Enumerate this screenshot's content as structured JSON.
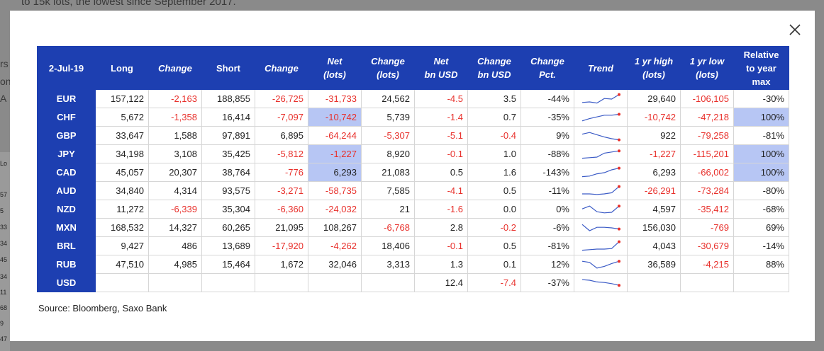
{
  "background": {
    "top_text": "to 15k lots, the lowest since September 2017.",
    "left_fragments": [
      "rs",
      "on",
      "A"
    ],
    "side_numbers": [
      "Lo",
      "57",
      "5",
      "33",
      "34",
      "45",
      "34",
      "11",
      "68",
      "9",
      "47"
    ]
  },
  "colors": {
    "header": "#1d3fb1",
    "negative": "#e8302b",
    "highlight": "#b7c6f4",
    "trend_line": "#3b5bc6",
    "trend_dot": "#e8302b"
  },
  "close_icon": "close-icon",
  "table": {
    "headers": [
      {
        "l1": "2-Jul-19",
        "l2": "",
        "l3": "",
        "italic": false
      },
      {
        "l1": "Long",
        "l2": "",
        "l3": "",
        "italic": false
      },
      {
        "l1": "Change",
        "l2": "",
        "l3": "",
        "italic": true
      },
      {
        "l1": "Short",
        "l2": "",
        "l3": "",
        "italic": false
      },
      {
        "l1": "Change",
        "l2": "",
        "l3": "",
        "italic": true
      },
      {
        "l1": "Net",
        "l2": "(lots)",
        "l3": "",
        "italic": true
      },
      {
        "l1": "Change",
        "l2": "(lots)",
        "l3": "",
        "italic": true
      },
      {
        "l1": "Net",
        "l2": "bn USD",
        "l3": "",
        "italic": true
      },
      {
        "l1": "Change",
        "l2": "bn USD",
        "l3": "",
        "italic": true
      },
      {
        "l1": "Change",
        "l2": "Pct.",
        "l3": "",
        "italic": true
      },
      {
        "l1": "Trend",
        "l2": "",
        "l3": "",
        "italic": true
      },
      {
        "l1": "1 yr high",
        "l2": "(lots)",
        "l3": "",
        "italic": true
      },
      {
        "l1": "1 yr low",
        "l2": "(lots)",
        "l3": "",
        "italic": true
      },
      {
        "l1": "Relative",
        "l2": "to year",
        "l3": "max",
        "italic": false
      }
    ],
    "rows": [
      {
        "cur": "EUR",
        "long": "157,122",
        "chg1": "-2,163",
        "short": "188,855",
        "chg2": "-26,725",
        "net": "-31,733",
        "chg_lots": "24,562",
        "net_usd": "-4.5",
        "chg_usd": "3.5",
        "pct": "-44%",
        "trend": [
          0.2,
          0.25,
          0.15,
          0.55,
          0.5,
          0.9
        ],
        "high": "29,640",
        "low": "-106,105",
        "rel": "-30%",
        "hl_net": false,
        "hl_rel": false
      },
      {
        "cur": "CHF",
        "long": "5,672",
        "chg1": "-1,358",
        "short": "16,414",
        "chg2": "-7,097",
        "net": "-10,742",
        "chg_lots": "5,739",
        "net_usd": "-1.4",
        "chg_usd": "0.7",
        "pct": "-35%",
        "trend": [
          0.2,
          0.4,
          0.55,
          0.7,
          0.7,
          0.78
        ],
        "high": "-10,742",
        "low": "-47,218",
        "rel": "100%",
        "hl_net": true,
        "hl_rel": true
      },
      {
        "cur": "GBP",
        "long": "33,647",
        "chg1": "1,588",
        "short": "97,891",
        "chg2": "6,895",
        "net": "-64,244",
        "chg_lots": "-5,307",
        "net_usd": "-5.1",
        "chg_usd": "-0.4",
        "pct": "9%",
        "trend": [
          0.65,
          0.8,
          0.6,
          0.4,
          0.25,
          0.15
        ],
        "high": "922",
        "low": "-79,258",
        "rel": "-81%",
        "hl_net": false,
        "hl_rel": false
      },
      {
        "cur": "JPY",
        "long": "34,198",
        "chg1": "3,108",
        "short": "35,425",
        "chg2": "-5,812",
        "net": "-1,227",
        "chg_lots": "8,920",
        "net_usd": "-0.1",
        "chg_usd": "1.0",
        "pct": "-88%",
        "trend": [
          0.15,
          0.2,
          0.25,
          0.6,
          0.7,
          0.8
        ],
        "high": "-1,227",
        "low": "-115,201",
        "rel": "100%",
        "hl_net": true,
        "hl_rel": true
      },
      {
        "cur": "CAD",
        "long": "45,057",
        "chg1": "20,307",
        "short": "38,764",
        "chg2": "-776",
        "net": "6,293",
        "chg_lots": "21,083",
        "net_usd": "0.5",
        "chg_usd": "1.6",
        "pct": "-143%",
        "trend": [
          0.15,
          0.2,
          0.4,
          0.5,
          0.75,
          0.9
        ],
        "high": "6,293",
        "low": "-66,002",
        "rel": "100%",
        "hl_net": true,
        "hl_rel": true
      },
      {
        "cur": "AUD",
        "long": "34,840",
        "chg1": "4,314",
        "short": "93,575",
        "chg2": "-3,271",
        "net": "-58,735",
        "chg_lots": "7,585",
        "net_usd": "-4.1",
        "chg_usd": "0.5",
        "pct": "-11%",
        "trend": [
          0.25,
          0.25,
          0.2,
          0.25,
          0.35,
          0.9
        ],
        "high": "-26,291",
        "low": "-73,284",
        "rel": "-80%",
        "hl_net": false,
        "hl_rel": false
      },
      {
        "cur": "NZD",
        "long": "11,272",
        "chg1": "-6,339",
        "short": "35,304",
        "chg2": "-6,360",
        "net": "-24,032",
        "chg_lots": "21",
        "net_usd": "-1.6",
        "chg_usd": "0.0",
        "pct": "0%",
        "trend": [
          0.55,
          0.8,
          0.3,
          0.2,
          0.25,
          0.8
        ],
        "high": "4,597",
        "low": "-35,412",
        "rel": "-68%",
        "hl_net": false,
        "hl_rel": false
      },
      {
        "cur": "MXN",
        "long": "168,532",
        "chg1": "14,327",
        "short": "60,265",
        "chg2": "21,095",
        "net": "108,267",
        "chg_lots": "-6,768",
        "net_usd": "2.8",
        "chg_usd": "-0.2",
        "pct": "-6%",
        "trend": [
          0.8,
          0.25,
          0.55,
          0.55,
          0.5,
          0.4
        ],
        "high": "156,030",
        "low": "-769",
        "rel": "69%",
        "hl_net": false,
        "hl_rel": false
      },
      {
        "cur": "BRL",
        "long": "9,427",
        "chg1": "486",
        "short": "13,689",
        "chg2": "-17,920",
        "net": "-4,262",
        "chg_lots": "18,406",
        "net_usd": "-0.1",
        "chg_usd": "0.5",
        "pct": "-81%",
        "trend": [
          0.15,
          0.2,
          0.25,
          0.25,
          0.3,
          0.9
        ],
        "high": "4,043",
        "low": "-30,679",
        "rel": "-14%",
        "hl_net": false,
        "hl_rel": false
      },
      {
        "cur": "RUB",
        "long": "47,510",
        "chg1": "4,985",
        "short": "15,464",
        "chg2": "1,672",
        "net": "32,046",
        "chg_lots": "3,313",
        "net_usd": "1.3",
        "chg_usd": "0.1",
        "pct": "12%",
        "trend": [
          0.8,
          0.7,
          0.2,
          0.35,
          0.6,
          0.8
        ],
        "high": "36,589",
        "low": "-4,215",
        "rel": "88%",
        "hl_net": false,
        "hl_rel": false
      },
      {
        "cur": "USD",
        "long": "",
        "chg1": "",
        "short": "",
        "chg2": "",
        "net": "",
        "chg_lots": "",
        "net_usd": "12.4",
        "chg_usd": "-7.4",
        "pct": "-37%",
        "trend": [
          0.8,
          0.75,
          0.6,
          0.55,
          0.45,
          0.3
        ],
        "high": "",
        "low": "",
        "rel": "",
        "hl_net": false,
        "hl_rel": false
      }
    ]
  },
  "source": "Source: Bloomberg, Saxo Bank"
}
